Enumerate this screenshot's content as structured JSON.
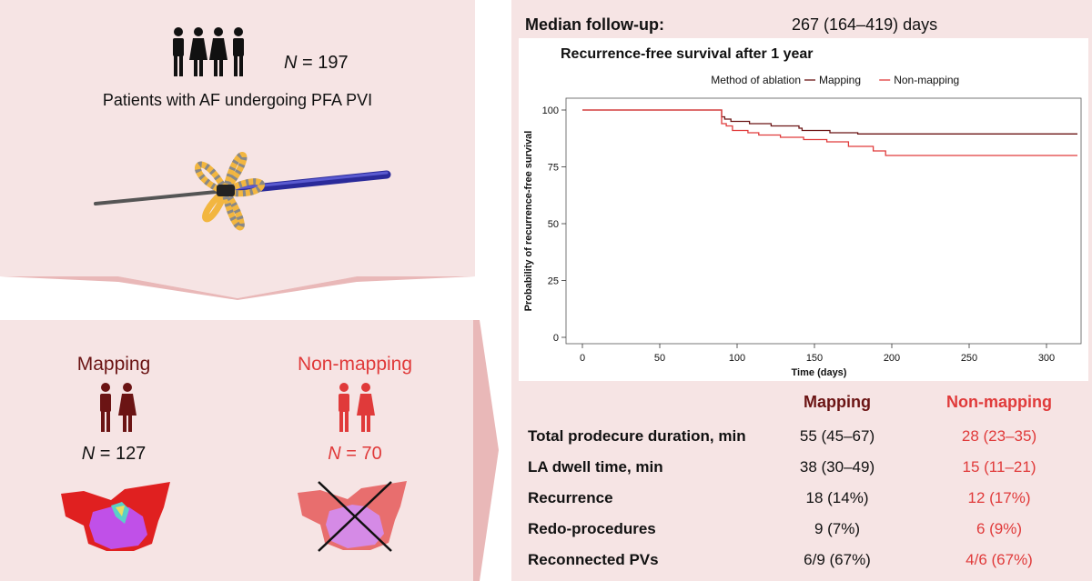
{
  "cohort": {
    "n_label": "N",
    "n_value": "= 197",
    "description": "Patients with AF undergoing PFA PVI"
  },
  "groups": [
    {
      "name": "Mapping",
      "n_label": "N",
      "n_value": "= 127",
      "color": "#6b1414"
    },
    {
      "name": "Non-mapping",
      "n_label": "N",
      "n_value": "= 70",
      "color": "#e03a3a"
    }
  ],
  "followup": {
    "label": "Median follow-up:",
    "value": "267 (164–419) days"
  },
  "chart_data": {
    "type": "line",
    "title": "Recurrence-free survival after 1 year",
    "legend_title": "Method of ablation",
    "legend_position": "top",
    "xlabel": "Time (days)",
    "ylabel": "Probability of recurrence-free survival",
    "xlim": [
      0,
      320
    ],
    "ylim": [
      0,
      100
    ],
    "x_ticks": [
      0,
      50,
      100,
      150,
      200,
      250,
      300
    ],
    "y_ticks": [
      0,
      25,
      50,
      75,
      100
    ],
    "grid": false,
    "series": [
      {
        "name": "Mapping",
        "color": "#6b1414",
        "points": [
          [
            0,
            100
          ],
          [
            90,
            100
          ],
          [
            90,
            97
          ],
          [
            92,
            97
          ],
          [
            92,
            96
          ],
          [
            96,
            96
          ],
          [
            96,
            95
          ],
          [
            108,
            95
          ],
          [
            108,
            94
          ],
          [
            122,
            94
          ],
          [
            122,
            93
          ],
          [
            140,
            93
          ],
          [
            140,
            92
          ],
          [
            142,
            92
          ],
          [
            142,
            91
          ],
          [
            160,
            91
          ],
          [
            160,
            90
          ],
          [
            178,
            90
          ],
          [
            178,
            89.5
          ],
          [
            320,
            89.5
          ]
        ]
      },
      {
        "name": "Non-mapping",
        "color": "#e03a3a",
        "points": [
          [
            0,
            100
          ],
          [
            90,
            100
          ],
          [
            90,
            94
          ],
          [
            93,
            94
          ],
          [
            93,
            93
          ],
          [
            97,
            93
          ],
          [
            97,
            91
          ],
          [
            107,
            91
          ],
          [
            107,
            90
          ],
          [
            114,
            90
          ],
          [
            114,
            89
          ],
          [
            128,
            89
          ],
          [
            128,
            88
          ],
          [
            143,
            88
          ],
          [
            143,
            87
          ],
          [
            158,
            87
          ],
          [
            158,
            86
          ],
          [
            172,
            86
          ],
          [
            172,
            84
          ],
          [
            188,
            84
          ],
          [
            188,
            82
          ],
          [
            196,
            82
          ],
          [
            196,
            80
          ],
          [
            320,
            80
          ]
        ]
      }
    ]
  },
  "table": {
    "headers": [
      "Mapping",
      "Non-mapping"
    ],
    "rows": [
      {
        "label": "Total prodecure duration, min",
        "mapping": "55 (45–67)",
        "nonmapping": "28 (23–35)"
      },
      {
        "label": "LA dwell time, min",
        "mapping": "38 (30–49)",
        "nonmapping": "15 (11–21)"
      },
      {
        "label": "Recurrence",
        "mapping": "18 (14%)",
        "nonmapping": "12 (17%)"
      },
      {
        "label": "Redo-procedures",
        "mapping": "9 (7%)",
        "nonmapping": "6 (9%)"
      },
      {
        "label": "Reconnected PVs",
        "mapping": "6/9 (67%)",
        "nonmapping": "4/6 (67%)"
      }
    ]
  }
}
